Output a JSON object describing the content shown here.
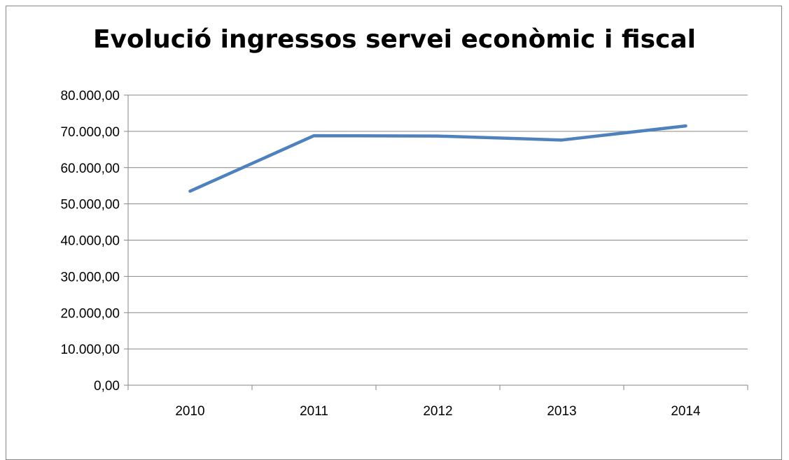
{
  "chart_data": {
    "type": "line",
    "title": "Evolució ingressos servei econòmic i fiscal",
    "xlabel": "",
    "ylabel": "",
    "categories": [
      "2010",
      "2011",
      "2012",
      "2013",
      "2014"
    ],
    "series": [
      {
        "values": [
          53500,
          68800,
          68700,
          67600,
          71500
        ]
      }
    ],
    "ylim": [
      0,
      80000
    ],
    "y_ticks": [
      "0,00",
      "10.000,00",
      "20.000,00",
      "30.000,00",
      "40.000,00",
      "50.000,00",
      "60.000,00",
      "70.000,00",
      "80.000,00"
    ],
    "grid": true,
    "legend": "none",
    "line_color": "#4F81BD",
    "gridline_color": "#868686"
  }
}
